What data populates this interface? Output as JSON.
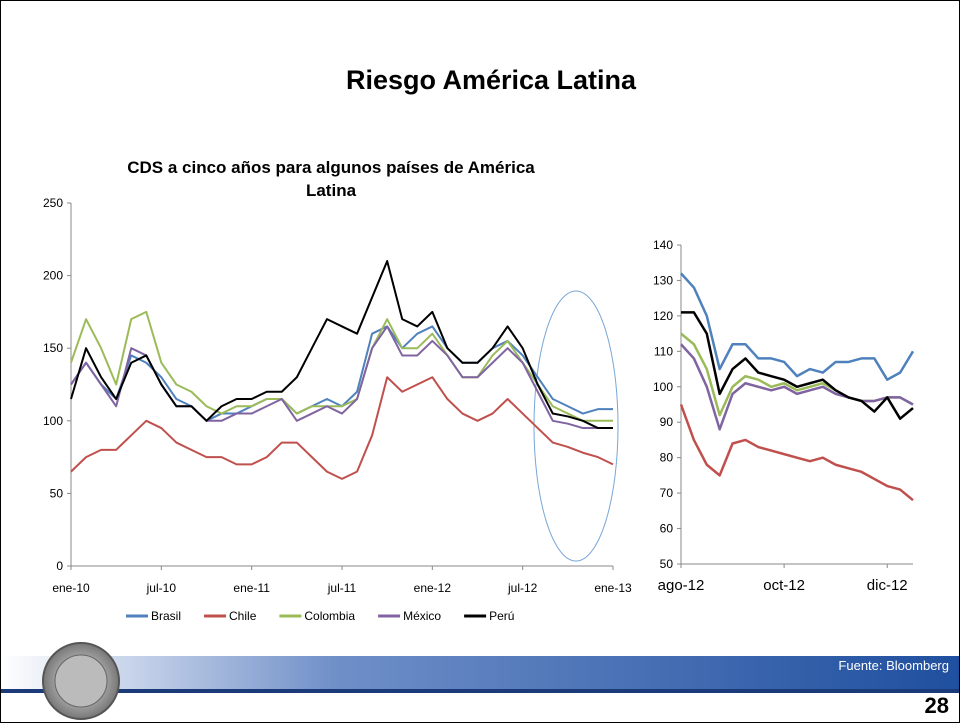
{
  "slide": {
    "title": "Riesgo América Latina",
    "source": "Fuente: Bloomberg",
    "page_number": 28
  },
  "chart_data": [
    {
      "type": "line",
      "title": "CDS a cinco años para algunos países de América Latina",
      "categories": [
        "ene-10",
        null,
        null,
        null,
        null,
        null,
        "jul-10",
        null,
        null,
        null,
        null,
        null,
        "ene-11",
        null,
        null,
        null,
        null,
        null,
        "jul-11",
        null,
        null,
        null,
        null,
        null,
        "ene-12",
        null,
        null,
        null,
        null,
        null,
        "jul-12",
        null,
        null,
        null,
        null,
        null,
        "ene-13"
      ],
      "ylim": [
        0,
        250
      ],
      "yticks": [
        0,
        50,
        100,
        150,
        200,
        250
      ],
      "legend": "bottom",
      "series": [
        {
          "name": "Brasil",
          "color": "#4f81bd",
          "values": [
            125,
            140,
            125,
            115,
            145,
            140,
            130,
            115,
            110,
            100,
            105,
            105,
            110,
            115,
            115,
            105,
            110,
            115,
            110,
            120,
            160,
            165,
            150,
            160,
            165,
            150,
            140,
            140,
            150,
            155,
            145,
            130,
            115,
            110,
            105,
            108,
            108
          ]
        },
        {
          "name": "Chile",
          "color": "#c0504d",
          "values": [
            65,
            75,
            80,
            80,
            90,
            100,
            95,
            85,
            80,
            75,
            75,
            70,
            70,
            75,
            85,
            85,
            75,
            65,
            60,
            65,
            90,
            130,
            120,
            125,
            130,
            115,
            105,
            100,
            105,
            115,
            105,
            95,
            85,
            82,
            78,
            75,
            70
          ]
        },
        {
          "name": "Colombia",
          "color": "#9bbb59",
          "values": [
            140,
            170,
            150,
            125,
            170,
            175,
            140,
            125,
            120,
            110,
            105,
            110,
            110,
            115,
            115,
            105,
            110,
            110,
            110,
            115,
            150,
            170,
            150,
            150,
            160,
            145,
            130,
            130,
            145,
            155,
            140,
            125,
            110,
            105,
            100,
            100,
            100
          ]
        },
        {
          "name": "México",
          "color": "#8064a2",
          "values": [
            125,
            140,
            125,
            110,
            150,
            145,
            125,
            110,
            110,
            100,
            100,
            105,
            105,
            110,
            115,
            100,
            105,
            110,
            105,
            115,
            150,
            165,
            145,
            145,
            155,
            145,
            130,
            130,
            140,
            150,
            140,
            120,
            100,
            98,
            95,
            95,
            95
          ]
        },
        {
          "name": "Perú",
          "color": "#000000",
          "values": [
            115,
            150,
            130,
            115,
            140,
            145,
            125,
            110,
            110,
            100,
            110,
            115,
            115,
            120,
            120,
            130,
            150,
            170,
            165,
            160,
            185,
            210,
            170,
            165,
            175,
            150,
            140,
            140,
            150,
            165,
            150,
            125,
            105,
            103,
            100,
            95,
            95
          ]
        }
      ]
    },
    {
      "type": "line",
      "categories": [
        "ago-12",
        null,
        null,
        null,
        null,
        null,
        null,
        null,
        "oct-12",
        null,
        null,
        null,
        null,
        null,
        null,
        null,
        "dic-12",
        null,
        null
      ],
      "ylim": [
        50,
        140
      ],
      "yticks": [
        50,
        60,
        70,
        80,
        90,
        100,
        110,
        120,
        130,
        140
      ],
      "series": [
        {
          "color": "#4f81bd",
          "values": [
            132,
            128,
            120,
            105,
            112,
            112,
            108,
            108,
            107,
            103,
            105,
            104,
            107,
            107,
            108,
            108,
            102,
            104,
            110
          ]
        },
        {
          "color": "#c0504d",
          "values": [
            95,
            85,
            78,
            75,
            84,
            85,
            83,
            82,
            81,
            80,
            79,
            80,
            78,
            77,
            76,
            74,
            72,
            71,
            68
          ]
        },
        {
          "color": "#9bbb59",
          "values": [
            115,
            112,
            105,
            92,
            100,
            103,
            102,
            100,
            101,
            99,
            100,
            101,
            99,
            97,
            96,
            96,
            97,
            97,
            95
          ]
        },
        {
          "color": "#8064a2",
          "values": [
            112,
            108,
            100,
            88,
            98,
            101,
            100,
            99,
            100,
            98,
            99,
            100,
            98,
            97,
            96,
            96,
            97,
            97,
            95
          ]
        },
        {
          "color": "#000000",
          "values": [
            121,
            121,
            115,
            98,
            105,
            108,
            104,
            103,
            102,
            100,
            101,
            102,
            99,
            97,
            96,
            93,
            97,
            91,
            94
          ]
        }
      ]
    }
  ]
}
